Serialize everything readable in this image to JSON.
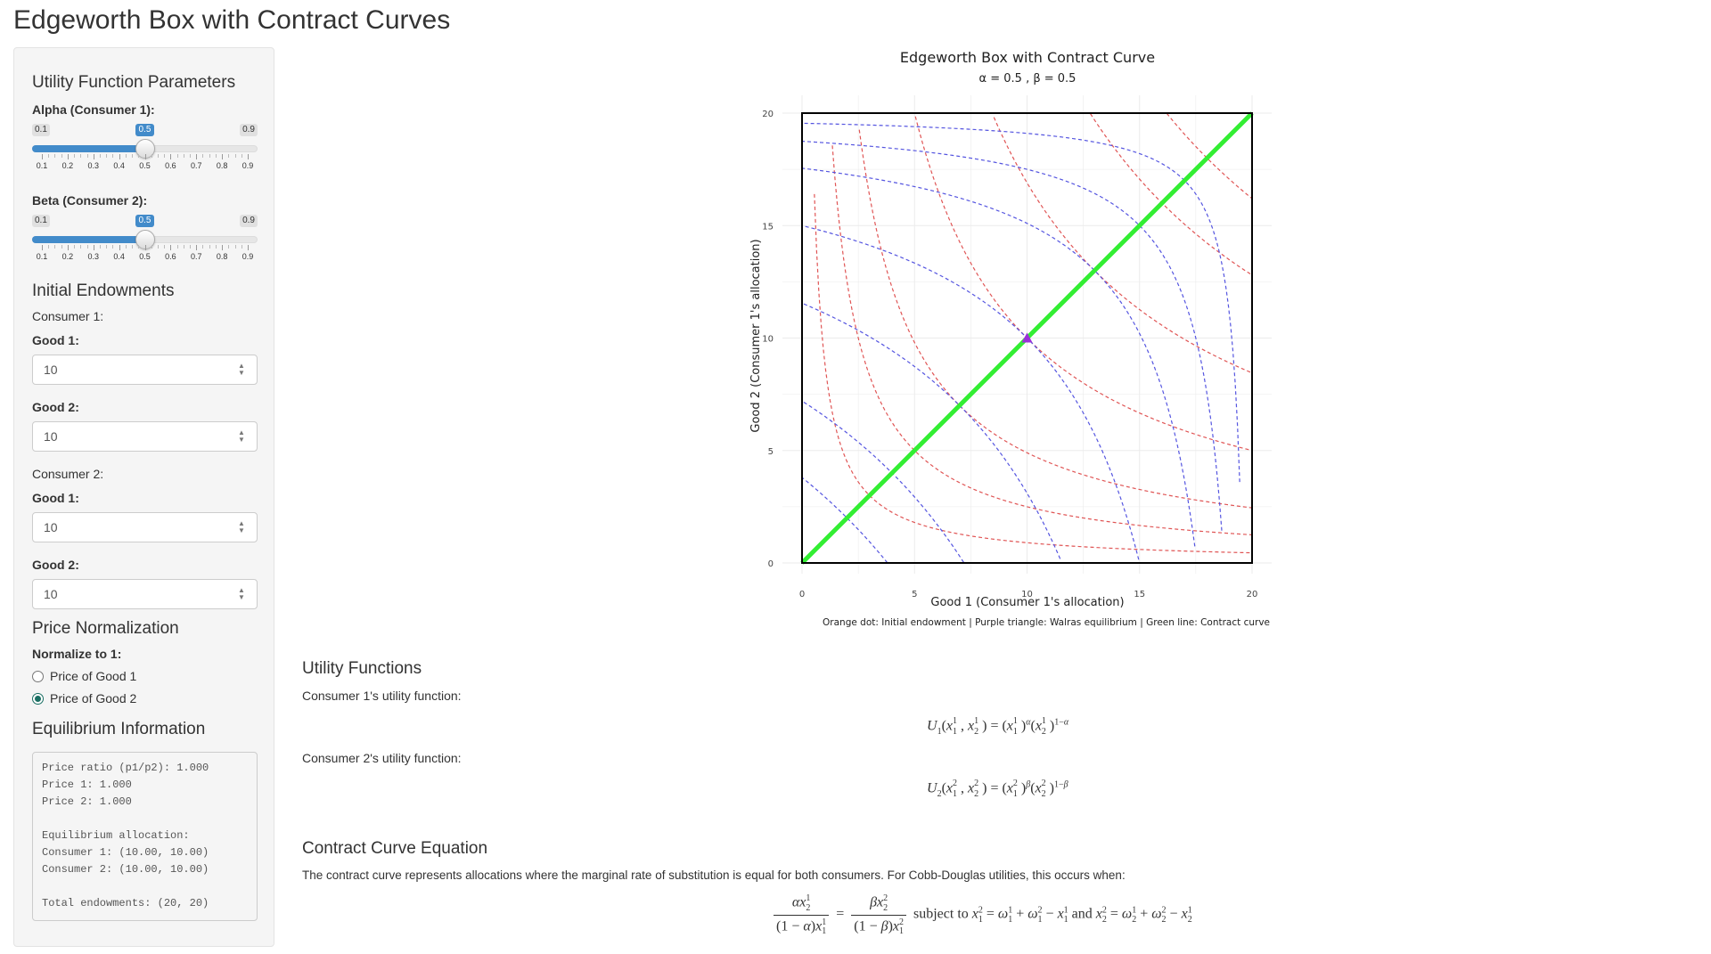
{
  "page": {
    "title": "Edgeworth Box with Contract Curves"
  },
  "sidebar": {
    "utility_title": "Utility Function Parameters",
    "alpha": {
      "label": "Alpha (Consumer 1):",
      "min": 0.1,
      "max": 0.9,
      "min_label": "0.1",
      "max_label": "0.9",
      "value": 0.5,
      "value_label": "0.5",
      "ticks": [
        "0.1",
        "0.2",
        "0.3",
        "0.4",
        "0.5",
        "0.6",
        "0.7",
        "0.8",
        "0.9"
      ]
    },
    "beta": {
      "label": "Beta (Consumer 2):",
      "min": 0.1,
      "max": 0.9,
      "min_label": "0.1",
      "max_label": "0.9",
      "value": 0.5,
      "value_label": "0.5",
      "ticks": [
        "0.1",
        "0.2",
        "0.3",
        "0.4",
        "0.5",
        "0.6",
        "0.7",
        "0.8",
        "0.9"
      ]
    },
    "endow_title": "Initial Endowments",
    "consumer1_label": "Consumer 1:",
    "consumer2_label": "Consumer 2:",
    "good1_label": "Good 1:",
    "good2_label": "Good 2:",
    "c1_good1": "10",
    "c1_good2": "10",
    "c2_good1": "10",
    "c2_good2": "10",
    "price_title": "Price Normalization",
    "normalize_label": "Normalize to 1:",
    "radio_options": [
      "Price of Good 1",
      "Price of Good 2"
    ],
    "radio_selected": 1,
    "eq_title": "Equilibrium Information",
    "eq_text": "Price ratio (p1/p2): 1.000\nPrice 1: 1.000\nPrice 2: 1.000\n\nEquilibrium allocation:\nConsumer 1: (10.00, 10.00)\nConsumer 2: (10.00, 10.00)\n\nTotal endowments: (20, 20)"
  },
  "colors": {
    "accent": "#428bca",
    "contract_curve": "#33ee33",
    "indiff_c1": "#e05555",
    "indiff_c2": "#5555e0",
    "equilibrium": "#9b30d9",
    "radio_checked": "#1b6f63"
  },
  "chart_data": {
    "type": "line",
    "title": "Edgeworth Box with Contract Curve",
    "subtitle": "α = 0.5 , β = 0.5",
    "xlabel": "Good 1 (Consumer 1's allocation)",
    "ylabel": "Good 2 (Consumer 1's allocation)",
    "caption": "Orange dot: Initial endowment | Purple triangle: Walras equilibrium | Green line: Contract curve",
    "xlim": [
      0,
      20
    ],
    "ylim": [
      0,
      20
    ],
    "x_ticks": [
      "0",
      "5",
      "10",
      "15",
      "20"
    ],
    "y_ticks": [
      "0",
      "5",
      "10",
      "15",
      "20"
    ],
    "alpha": 0.5,
    "beta": 0.5,
    "total_endowment": [
      20,
      20
    ],
    "consumer1_utility_levels": [
      3,
      5,
      7,
      10,
      13,
      16,
      18
    ],
    "consumer2_utility_levels": [
      3,
      5,
      7,
      10,
      13,
      16,
      18
    ],
    "contract_curve": {
      "x": [
        0,
        20
      ],
      "y": [
        0,
        20
      ]
    },
    "equilibrium": {
      "x": 10,
      "y": 10
    },
    "endowment": {
      "x": 10,
      "y": 10
    }
  },
  "main": {
    "utility_title": "Utility Functions",
    "c1_utility_label": "Consumer 1's utility function:",
    "c2_utility_label": "Consumer 2's utility function:",
    "contract_title": "Contract Curve Equation",
    "contract_desc": "The contract curve represents allocations where the marginal rate of substitution is equal for both consumers. For Cobb-Douglas utilities, this occurs when:",
    "subject_to": "subject to",
    "and_word": "and"
  }
}
